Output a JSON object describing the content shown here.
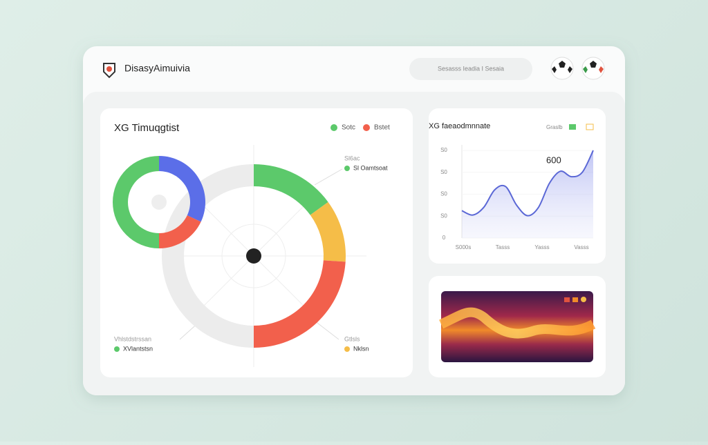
{
  "header": {
    "brand": "DisasyAimuivia",
    "search": "Sesasss Ieadia I Sesaia"
  },
  "donut_panel": {
    "title": "XG Timuqgtist",
    "legend": [
      {
        "name": "Sotc",
        "color": "#5cc96b"
      },
      {
        "name": "Bstet",
        "color": "#f2604c"
      }
    ],
    "labels": {
      "top_right": {
        "caption": "Sl6ac",
        "name": "Sl Oamtsoat",
        "color": "#5cc96b"
      },
      "bottom_left": {
        "caption": "Vhlstdstrssan",
        "name": "XVlantstsn",
        "color": "#5cc96b"
      },
      "bottom_right": {
        "caption": "Gtlsls",
        "name": "Nklsn",
        "color": "#f5bd48"
      }
    },
    "inner_ring": {
      "values": [
        32,
        18,
        50
      ],
      "colors": [
        "#5b6ee8",
        "#f2604c",
        "#5cc96b"
      ]
    },
    "outer_ring": {
      "values": [
        15,
        11,
        24,
        50
      ],
      "colors": [
        "#5cc96b",
        "#f5bd48",
        "#f2604c",
        "#ececec"
      ]
    }
  },
  "line_panel": {
    "title": "XG faeaodmnnate",
    "badge": "Graslb",
    "annotation": "600",
    "ylim": [
      0,
      40
    ],
    "yticks": [
      0,
      {
        "value": 10,
        "label": "S0"
      },
      {
        "value": 20,
        "label": "S0"
      },
      {
        "value": 30,
        "label": "S0"
      },
      {
        "value": 40,
        "label": "S0"
      }
    ],
    "x_labels": [
      "S000s",
      "Tasss",
      "Yasss",
      "Vasss"
    ],
    "values": [
      12.5,
      10.5,
      14,
      22,
      23.5,
      15,
      10.2,
      14,
      25,
      30.5,
      28,
      30,
      40
    ],
    "color": "#5b68d6"
  }
}
